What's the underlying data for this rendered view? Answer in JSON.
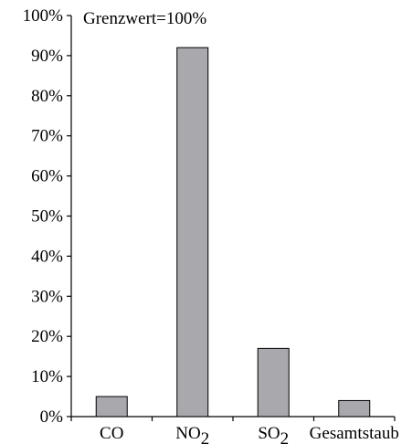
{
  "chart_data": {
    "type": "bar",
    "title": "",
    "xlabel": "",
    "ylabel": "",
    "annotation": "Grenzwert=100%",
    "categories": [
      {
        "label": "CO",
        "sub": ""
      },
      {
        "label": "NO",
        "sub": "2"
      },
      {
        "label": "SO",
        "sub": "2"
      },
      {
        "label": "Gesamtstaub",
        "sub": ""
      }
    ],
    "values": [
      5,
      92,
      17,
      4
    ],
    "unit": "%",
    "ylim": [
      0,
      100
    ],
    "yticks": [
      "0%",
      "10%",
      "20%",
      "30%",
      "40%",
      "50%",
      "60%",
      "70%",
      "80%",
      "90%",
      "100%"
    ],
    "grid": false,
    "bar_color": "#a8a8ad",
    "bar_edge_color": "#000000"
  }
}
